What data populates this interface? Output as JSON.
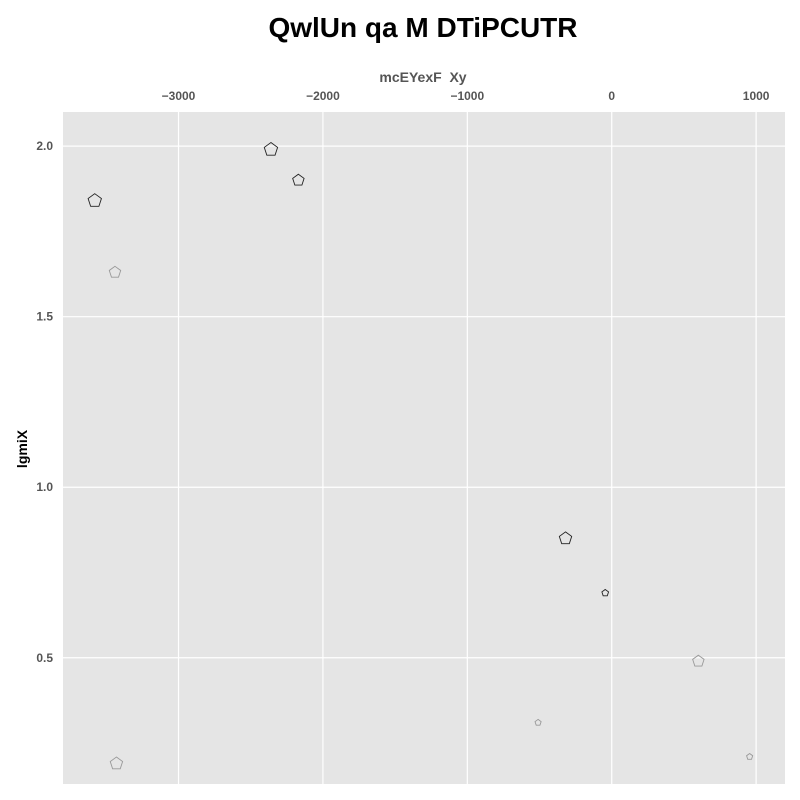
{
  "chart_data": {
    "type": "scatter",
    "title": "QwlUn qa M DTiPCUTR",
    "xlabel": "mcEYexF  Xy",
    "ylabel": "lgmiX",
    "xlim": [
      -3800,
      1200
    ],
    "ylim": [
      0.13,
      2.1
    ],
    "x_ticks": [
      -3000,
      -2000,
      -1000,
      0,
      1000
    ],
    "x_tick_labels": [
      "−3000",
      "−2000",
      "−1000",
      "0",
      "1000"
    ],
    "y_ticks": [
      0.5,
      1.0,
      1.5,
      2.0
    ],
    "y_tick_labels": [
      "0.5",
      "1.0",
      "1.5",
      "2.0"
    ],
    "x_axis_position": "top",
    "grid": true,
    "background": "#e5e5e5",
    "marker": "pentagon",
    "series": [
      {
        "color": "#222222",
        "points": [
          {
            "x": -3580,
            "y": 1.84,
            "size": 7
          },
          {
            "x": -2360,
            "y": 1.99,
            "size": 7
          },
          {
            "x": -2170,
            "y": 1.9,
            "size": 6
          },
          {
            "x": -320,
            "y": 0.85,
            "size": 6.5
          },
          {
            "x": -45,
            "y": 0.69,
            "size": 3.5
          }
        ]
      },
      {
        "color": "#999999",
        "points": [
          {
            "x": -3440,
            "y": 1.63,
            "size": 6
          },
          {
            "x": -3430,
            "y": 0.19,
            "size": 6.5
          },
          {
            "x": -510,
            "y": 0.31,
            "size": 3.2
          },
          {
            "x": 600,
            "y": 0.49,
            "size": 6
          },
          {
            "x": 955,
            "y": 0.21,
            "size": 3.2
          }
        ]
      }
    ]
  }
}
